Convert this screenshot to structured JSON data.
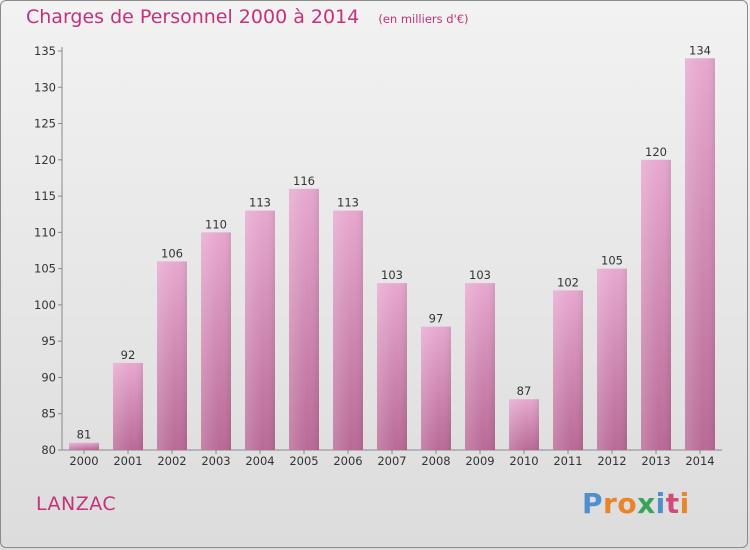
{
  "header": {
    "title": "Charges de Personnel 2000 à 2014",
    "subtitle": "(en milliers d'€)"
  },
  "footer": {
    "place": "LANZAC",
    "brand": "Proxiti",
    "brand_letters": [
      {
        "char": "P",
        "color": "#4f8fd0"
      },
      {
        "char": "r",
        "color": "#e8842a"
      },
      {
        "char": "o",
        "color": "#e8842a"
      },
      {
        "char": "x",
        "color": "#3aa35a"
      },
      {
        "char": "i",
        "color": "#4f8fd0"
      },
      {
        "char": "t",
        "color": "#d24a7a"
      },
      {
        "char": "i",
        "color": "#e8842a"
      }
    ]
  },
  "colors": {
    "title": "#c5317a",
    "bar_light": "#e7a8cf",
    "bar_dark": "#b86a96",
    "axis": "#888888"
  },
  "chart_data": {
    "type": "bar",
    "categories": [
      "2000",
      "2001",
      "2002",
      "2003",
      "2004",
      "2005",
      "2006",
      "2007",
      "2008",
      "2009",
      "2010",
      "2011",
      "2012",
      "2013",
      "2014"
    ],
    "values": [
      81,
      92,
      106,
      110,
      113,
      116,
      113,
      103,
      97,
      103,
      87,
      102,
      105,
      120,
      134
    ],
    "ylim": [
      80,
      135
    ],
    "yticks": [
      80,
      85,
      90,
      95,
      100,
      105,
      110,
      115,
      120,
      125,
      130,
      135
    ],
    "grid": false,
    "legend": "none"
  }
}
